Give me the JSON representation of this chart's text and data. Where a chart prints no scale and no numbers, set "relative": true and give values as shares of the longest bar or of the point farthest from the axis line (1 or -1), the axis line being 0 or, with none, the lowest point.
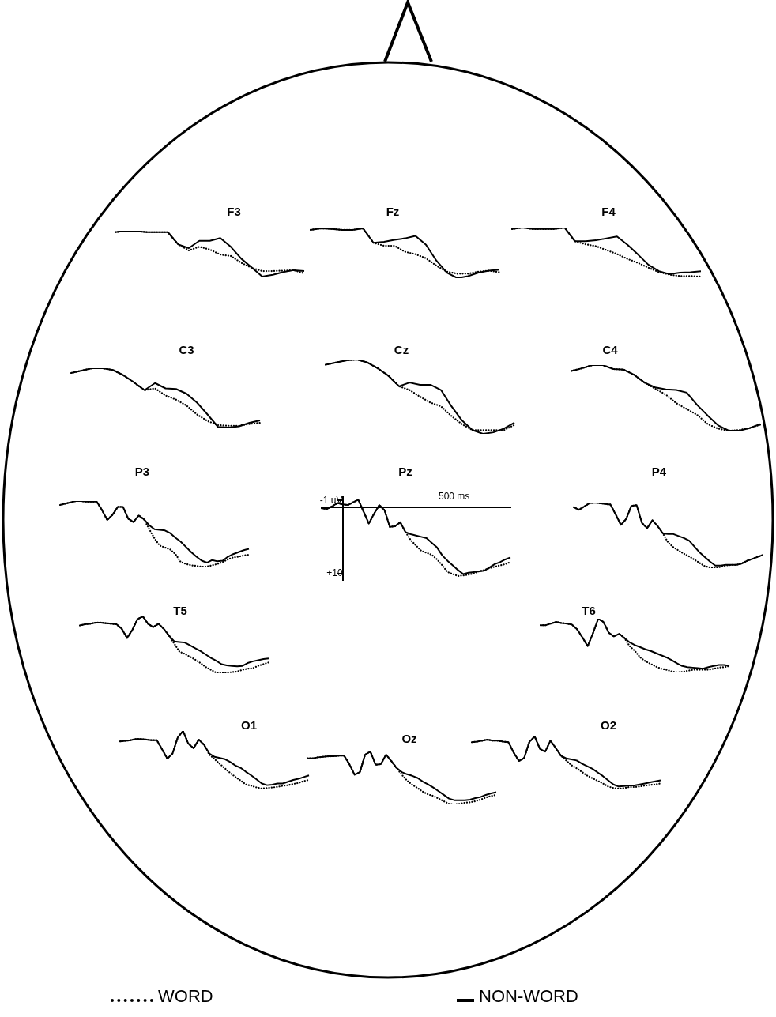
{
  "chart_data": [
    {
      "type": "line",
      "title": "F3",
      "relative": true,
      "legend": "bottom",
      "categories": [
        null,
        null,
        null,
        null,
        null,
        null,
        null,
        null,
        null,
        null,
        null,
        null,
        null,
        null,
        null,
        null,
        null,
        null,
        null
      ],
      "series": [
        {
          "name": "WORD",
          "color": "#000000",
          "line_style": "dotted",
          "values": [
            0.97,
            1,
            0.99,
            0.97,
            0.97,
            0.97,
            0.7,
            0.57,
            0.65,
            0.59,
            0.48,
            0.45,
            0.3,
            0.19,
            0.12,
            0.12,
            0.13,
            0.14,
            0.07
          ]
        },
        {
          "name": "NON-WORD",
          "color": "#000000",
          "line_style": "solid",
          "values": [
            0.97,
            1,
            0.99,
            0.97,
            0.97,
            0.97,
            0.7,
            0.62,
            0.78,
            0.78,
            0.84,
            0.65,
            0.39,
            0.2,
            0,
            0.04,
            0.1,
            0.14,
            0.12
          ]
        }
      ]
    },
    {
      "type": "line",
      "title": "Fz",
      "relative": true,
      "categories": [
        null,
        null,
        null,
        null,
        null,
        null,
        null,
        null,
        null,
        null,
        null,
        null,
        null,
        null,
        null,
        null,
        null,
        null,
        null
      ],
      "series": [
        {
          "color": "#000000",
          "line_style": "dotted",
          "values": [
            0.97,
            1,
            0.99,
            0.97,
            0.97,
            1,
            0.71,
            0.65,
            0.65,
            0.53,
            0.48,
            0.4,
            0.25,
            0.13,
            0.09,
            0.09,
            0.13,
            0.15,
            0.12
          ]
        },
        {
          "color": "#000000",
          "line_style": "solid",
          "values": [
            0.97,
            1,
            0.99,
            0.97,
            0.97,
            1,
            0.71,
            0.73,
            0.77,
            0.8,
            0.85,
            0.67,
            0.35,
            0.11,
            0,
            0.04,
            0.11,
            0.15,
            0.17
          ]
        }
      ]
    },
    {
      "type": "line",
      "title": "F4",
      "relative": true,
      "categories": [
        null,
        null,
        null,
        null,
        null,
        null,
        null,
        null,
        null,
        null,
        null,
        null,
        null,
        null,
        null,
        null,
        null,
        null,
        null
      ],
      "series": [
        {
          "color": "#000000",
          "line_style": "dotted",
          "values": [
            0.97,
            1,
            0.97,
            0.97,
            0.97,
            1,
            0.72,
            0.66,
            0.62,
            0.54,
            0.46,
            0.36,
            0.28,
            0.18,
            0.09,
            0.04,
            0.01,
            0.01,
            0
          ]
        },
        {
          "color": "#000000",
          "line_style": "solid",
          "values": [
            0.97,
            1,
            0.97,
            0.97,
            0.97,
            1,
            0.72,
            0.72,
            0.74,
            0.78,
            0.82,
            0.65,
            0.45,
            0.24,
            0.11,
            0.05,
            0.08,
            0.09,
            0.11
          ]
        }
      ]
    },
    {
      "type": "line",
      "title": "C3",
      "relative": true,
      "categories": [
        null,
        null,
        null,
        null,
        null,
        null,
        null,
        null,
        null,
        null,
        null,
        null,
        null,
        null,
        null,
        null,
        null,
        null,
        null
      ],
      "series": [
        {
          "color": "#000000",
          "line_style": "dotted",
          "values": [
            0.92,
            0.96,
            1,
            1,
            0.97,
            0.88,
            0.76,
            0.63,
            0.66,
            0.54,
            0.47,
            0.37,
            0.22,
            0.11,
            0.04,
            0.03,
            0.03,
            0.06,
            0.08
          ]
        },
        {
          "color": "#000000",
          "line_style": "solid",
          "values": [
            0.92,
            0.96,
            1,
            1,
            0.97,
            0.88,
            0.76,
            0.63,
            0.75,
            0.66,
            0.65,
            0.57,
            0.42,
            0.22,
            0.01,
            0,
            0.02,
            0.08,
            0.12
          ]
        }
      ]
    },
    {
      "type": "line",
      "title": "Cz",
      "relative": true,
      "categories": [
        null,
        null,
        null,
        null,
        null,
        null,
        null,
        null,
        null,
        null,
        null,
        null,
        null,
        null,
        null,
        null,
        null,
        null,
        null
      ],
      "series": [
        {
          "color": "#000000",
          "line_style": "dotted",
          "values": [
            0.93,
            0.96,
            0.99,
            1,
            0.96,
            0.88,
            0.78,
            0.64,
            0.59,
            0.5,
            0.42,
            0.37,
            0.24,
            0.13,
            0.05,
            0.05,
            0.05,
            0.05,
            0.12
          ]
        },
        {
          "color": "#000000",
          "line_style": "solid",
          "values": [
            0.93,
            0.96,
            0.99,
            1,
            0.96,
            0.88,
            0.78,
            0.64,
            0.69,
            0.66,
            0.66,
            0.59,
            0.37,
            0.18,
            0.05,
            0,
            0.02,
            0.07,
            0.15
          ]
        }
      ]
    },
    {
      "type": "line",
      "title": "C4",
      "relative": true,
      "categories": [
        null,
        null,
        null,
        null,
        null,
        null,
        null,
        null,
        null,
        null,
        null,
        null,
        null,
        null,
        null,
        null,
        null,
        null,
        null
      ],
      "series": [
        {
          "color": "#000000",
          "line_style": "dotted",
          "values": [
            0.91,
            0.95,
            1,
            1,
            0.94,
            0.93,
            0.85,
            0.73,
            0.64,
            0.55,
            0.42,
            0.33,
            0.24,
            0.1,
            0.03,
            0,
            0.01,
            0.04,
            0.09
          ]
        },
        {
          "color": "#000000",
          "line_style": "solid",
          "values": [
            0.91,
            0.95,
            1,
            1,
            0.94,
            0.93,
            0.85,
            0.73,
            0.66,
            0.63,
            0.62,
            0.58,
            0.39,
            0.23,
            0.08,
            0,
            0,
            0.04,
            0.1
          ]
        }
      ]
    },
    {
      "type": "line",
      "title": "P3",
      "relative": true,
      "categories": [
        null,
        null,
        null,
        null,
        null,
        null,
        null,
        null,
        null,
        null,
        null,
        null,
        null,
        null,
        null,
        null,
        null,
        null,
        null,
        null,
        null,
        null,
        null,
        null,
        null,
        null,
        null,
        null,
        null,
        null,
        null,
        null,
        null,
        null,
        null,
        null,
        null
      ],
      "series": [
        {
          "color": "#000000",
          "line_style": "dotted",
          "values": [
            0.94,
            0.96,
            0.98,
            1,
            1,
            0.99,
            0.99,
            0.99,
            0.86,
            0.71,
            0.79,
            0.91,
            0.91,
            0.73,
            0.68,
            0.78,
            0.72,
            0.57,
            0.43,
            0.32,
            0.29,
            0.26,
            0.19,
            0.07,
            0.04,
            0.02,
            0.01,
            0,
            0,
            0.02,
            0.04,
            0.07,
            0.11,
            0.14,
            0.15,
            0.17,
            0.18
          ]
        },
        {
          "color": "#000000",
          "line_style": "solid",
          "values": [
            0.94,
            0.96,
            0.98,
            1,
            1,
            0.99,
            0.99,
            0.99,
            0.86,
            0.71,
            0.79,
            0.91,
            0.91,
            0.73,
            0.68,
            0.78,
            0.72,
            0.63,
            0.57,
            0.56,
            0.55,
            0.51,
            0.44,
            0.38,
            0.3,
            0.22,
            0.15,
            0.09,
            0.06,
            0.1,
            0.08,
            0.09,
            0.15,
            0.19,
            0.22,
            0.25,
            0.27
          ]
        }
      ]
    },
    {
      "type": "line",
      "title": "Pz",
      "ylim": [
        11,
        -1.5
      ],
      "yticks": [
        {
          "value": -1,
          "label": "-1 uV"
        },
        {
          "value": 0,
          "label": null
        },
        {
          "value": 10,
          "label": "+10"
        }
      ],
      "annotations": [
        "500 ms"
      ],
      "categories": [
        null,
        null,
        null,
        null,
        null,
        null,
        null,
        null,
        null,
        null,
        null,
        null,
        null,
        null,
        null,
        null,
        null,
        null,
        null,
        null,
        null,
        null,
        null,
        null,
        null,
        null,
        null,
        null,
        null,
        null,
        null,
        null,
        null,
        null,
        null,
        null,
        null
      ],
      "series": [
        {
          "color": "#000000",
          "line_style": "dotted",
          "values": [
            0.2,
            0.3,
            -0.1,
            -0.6,
            -0.4,
            -0.3,
            -0.7,
            -1.1,
            0.7,
            2.5,
            1.0,
            -0.3,
            0.5,
            3.0,
            2.9,
            2.3,
            3.8,
            5.0,
            5.8,
            6.6,
            6.9,
            7.2,
            7.9,
            8.8,
            9.8,
            10.1,
            10.4,
            10.3,
            10.2,
            10.0,
            9.7,
            9.5,
            9.2,
            9.0,
            8.8,
            8.6,
            8.3
          ]
        },
        {
          "color": "#000000",
          "line_style": "solid",
          "values": [
            0.2,
            0.3,
            -0.1,
            -0.6,
            -0.4,
            -0.3,
            -0.7,
            -1.1,
            0.7,
            2.5,
            1.0,
            -0.3,
            0.5,
            3.0,
            2.9,
            2.3,
            3.8,
            4.1,
            4.3,
            4.5,
            4.7,
            5.4,
            6.1,
            7.3,
            8.1,
            8.8,
            9.5,
            10.1,
            9.9,
            9.8,
            9.7,
            9.6,
            9.1,
            8.6,
            8.3,
            7.9,
            7.6
          ]
        }
      ]
    },
    {
      "type": "line",
      "title": "P4",
      "relative": true,
      "categories": [
        null,
        null,
        null,
        null,
        null,
        null,
        null,
        null,
        null,
        null,
        null,
        null,
        null,
        null,
        null,
        null,
        null,
        null,
        null,
        null,
        null,
        null,
        null,
        null,
        null,
        null,
        null,
        null,
        null,
        null,
        null,
        null,
        null,
        null,
        null,
        null,
        null
      ],
      "series": [
        {
          "color": "#000000",
          "line_style": "dotted",
          "values": [
            0.93,
            0.89,
            0.94,
            0.99,
            1,
            0.99,
            0.98,
            0.97,
            0.82,
            0.66,
            0.75,
            0.95,
            0.96,
            0.69,
            0.61,
            0.73,
            0.64,
            0.53,
            0.39,
            0.32,
            0.27,
            0.22,
            0.18,
            0.13,
            0.08,
            0.03,
            0.01,
            0,
            0.02,
            0.04,
            0.05,
            0.05,
            0.07,
            0.11,
            0.14,
            0.17,
            0.2
          ]
        },
        {
          "color": "#000000",
          "line_style": "solid",
          "values": [
            0.93,
            0.89,
            0.94,
            0.99,
            1,
            0.99,
            0.98,
            0.97,
            0.82,
            0.66,
            0.75,
            0.95,
            0.96,
            0.69,
            0.61,
            0.73,
            0.64,
            0.53,
            0.52,
            0.52,
            0.49,
            0.46,
            0.42,
            0.33,
            0.24,
            0.17,
            0.1,
            0.04,
            0.04,
            0.05,
            0.05,
            0.05,
            0.07,
            0.11,
            0.14,
            0.17,
            0.2
          ]
        }
      ]
    },
    {
      "type": "line",
      "title": "T5",
      "relative": true,
      "categories": [
        null,
        null,
        null,
        null,
        null,
        null,
        null,
        null,
        null,
        null,
        null,
        null,
        null,
        null,
        null,
        null,
        null,
        null,
        null,
        null,
        null,
        null,
        null,
        null,
        null,
        null,
        null,
        null,
        null,
        null,
        null,
        null,
        null,
        null,
        null,
        null,
        null
      ],
      "series": [
        {
          "color": "#000000",
          "line_style": "dotted",
          "values": [
            0.84,
            0.86,
            0.87,
            0.89,
            0.89,
            0.88,
            0.87,
            0.86,
            0.78,
            0.62,
            0.76,
            0.95,
            1,
            0.87,
            0.81,
            0.87,
            0.78,
            0.66,
            0.52,
            0.38,
            0.34,
            0.29,
            0.24,
            0.18,
            0.11,
            0.06,
            0.01,
            0,
            0.01,
            0.02,
            0.03,
            0.06,
            0.08,
            0.09,
            0.13,
            0.16,
            0.19
          ]
        },
        {
          "color": "#000000",
          "line_style": "solid",
          "values": [
            0.84,
            0.86,
            0.87,
            0.89,
            0.89,
            0.88,
            0.87,
            0.86,
            0.78,
            0.62,
            0.76,
            0.95,
            1,
            0.87,
            0.81,
            0.87,
            0.78,
            0.66,
            0.56,
            0.55,
            0.54,
            0.49,
            0.44,
            0.39,
            0.33,
            0.27,
            0.22,
            0.16,
            0.14,
            0.13,
            0.12,
            0.13,
            0.18,
            0.21,
            0.23,
            0.25,
            0.26
          ]
        }
      ]
    },
    {
      "type": "line",
      "title": "T6",
      "relative": true,
      "categories": [
        null,
        null,
        null,
        null,
        null,
        null,
        null,
        null,
        null,
        null,
        null,
        null,
        null,
        null,
        null,
        null,
        null,
        null,
        null,
        null,
        null,
        null,
        null,
        null,
        null,
        null,
        null,
        null,
        null,
        null,
        null,
        null,
        null,
        null,
        null,
        null,
        null
      ],
      "series": [
        {
          "color": "#000000",
          "line_style": "dotted",
          "values": [
            0.88,
            0.88,
            0.91,
            0.94,
            0.92,
            0.91,
            0.89,
            0.8,
            0.65,
            0.49,
            0.73,
            1,
            0.94,
            0.74,
            0.67,
            0.72,
            0.64,
            0.49,
            0.4,
            0.28,
            0.21,
            0.16,
            0.11,
            0.07,
            0.05,
            0.02,
            0,
            0.01,
            0.03,
            0.05,
            0.05,
            0.05,
            0.05,
            0.07,
            0.09,
            0.1,
            0.12
          ]
        },
        {
          "color": "#000000",
          "line_style": "solid",
          "values": [
            0.88,
            0.88,
            0.91,
            0.94,
            0.92,
            0.91,
            0.89,
            0.8,
            0.65,
            0.49,
            0.73,
            1,
            0.94,
            0.74,
            0.67,
            0.72,
            0.64,
            0.56,
            0.51,
            0.47,
            0.43,
            0.4,
            0.36,
            0.32,
            0.28,
            0.23,
            0.17,
            0.12,
            0.1,
            0.09,
            0.08,
            0.07,
            0.1,
            0.12,
            0.14,
            0.14,
            0.12
          ]
        }
      ]
    },
    {
      "type": "line",
      "title": "O1",
      "relative": true,
      "categories": [
        null,
        null,
        null,
        null,
        null,
        null,
        null,
        null,
        null,
        null,
        null,
        null,
        null,
        null,
        null,
        null,
        null,
        null,
        null,
        null,
        null,
        null,
        null,
        null,
        null,
        null,
        null,
        null,
        null,
        null,
        null,
        null,
        null,
        null,
        null,
        null,
        null
      ],
      "series": [
        {
          "color": "#000000",
          "line_style": "dotted",
          "values": [
            0.82,
            0.83,
            0.84,
            0.86,
            0.86,
            0.85,
            0.84,
            0.84,
            0.68,
            0.52,
            0.61,
            0.89,
            1,
            0.78,
            0.7,
            0.85,
            0.76,
            0.59,
            0.51,
            0.43,
            0.35,
            0.27,
            0.2,
            0.14,
            0.07,
            0.05,
            0.02,
            0,
            0.01,
            0.02,
            0.03,
            0.05,
            0.06,
            0.08,
            0.1,
            0.13,
            0.15
          ]
        },
        {
          "color": "#000000",
          "line_style": "solid",
          "values": [
            0.82,
            0.83,
            0.84,
            0.86,
            0.86,
            0.85,
            0.84,
            0.84,
            0.68,
            0.52,
            0.61,
            0.89,
            1,
            0.78,
            0.7,
            0.85,
            0.76,
            0.61,
            0.55,
            0.53,
            0.51,
            0.46,
            0.4,
            0.36,
            0.29,
            0.23,
            0.16,
            0.09,
            0.06,
            0.07,
            0.09,
            0.09,
            0.12,
            0.15,
            0.17,
            0.2,
            0.23
          ]
        }
      ]
    },
    {
      "type": "line",
      "title": "Oz",
      "relative": true,
      "categories": [
        null,
        null,
        null,
        null,
        null,
        null,
        null,
        null,
        null,
        null,
        null,
        null,
        null,
        null,
        null,
        null,
        null,
        null,
        null,
        null,
        null,
        null,
        null,
        null,
        null,
        null,
        null,
        null,
        null,
        null,
        null,
        null,
        null,
        null,
        null,
        null,
        null
      ],
      "series": [
        {
          "color": "#000000",
          "line_style": "dotted",
          "values": [
            0.87,
            0.87,
            0.89,
            0.9,
            0.91,
            0.91,
            0.92,
            0.92,
            0.76,
            0.56,
            0.61,
            0.94,
            1,
            0.75,
            0.76,
            0.94,
            0.82,
            0.69,
            0.56,
            0.45,
            0.37,
            0.31,
            0.24,
            0.19,
            0.16,
            0.11,
            0.06,
            0.01,
            0,
            0.01,
            0.03,
            0.04,
            0.06,
            0.09,
            0.13,
            0.16,
            0.18
          ]
        },
        {
          "color": "#000000",
          "line_style": "solid",
          "values": [
            0.87,
            0.87,
            0.89,
            0.9,
            0.91,
            0.91,
            0.92,
            0.92,
            0.76,
            0.56,
            0.61,
            0.94,
            1,
            0.75,
            0.76,
            0.94,
            0.82,
            0.69,
            0.61,
            0.57,
            0.54,
            0.5,
            0.43,
            0.38,
            0.32,
            0.25,
            0.18,
            0.11,
            0.08,
            0.08,
            0.08,
            0.09,
            0.12,
            0.14,
            0.18,
            0.21,
            0.23
          ]
        }
      ]
    },
    {
      "type": "line",
      "title": "O2",
      "relative": true,
      "categories": [
        null,
        null,
        null,
        null,
        null,
        null,
        null,
        null,
        null,
        null,
        null,
        null,
        null,
        null,
        null,
        null,
        null,
        null,
        null,
        null,
        null,
        null,
        null,
        null,
        null,
        null,
        null,
        null,
        null,
        null,
        null,
        null,
        null,
        null,
        null,
        null,
        null
      ],
      "series": [
        {
          "color": "#000000",
          "line_style": "dotted",
          "values": [
            0.89,
            0.9,
            0.92,
            0.94,
            0.92,
            0.92,
            0.9,
            0.89,
            0.69,
            0.53,
            0.59,
            0.9,
            1,
            0.76,
            0.71,
            0.92,
            0.78,
            0.63,
            0.54,
            0.45,
            0.39,
            0.32,
            0.25,
            0.2,
            0.15,
            0.1,
            0.04,
            0.01,
            0,
            0.01,
            0.03,
            0.03,
            0.04,
            0.06,
            0.07,
            0.08,
            0.1
          ]
        },
        {
          "color": "#000000",
          "line_style": "solid",
          "values": [
            0.89,
            0.9,
            0.92,
            0.94,
            0.92,
            0.92,
            0.9,
            0.89,
            0.69,
            0.53,
            0.59,
            0.9,
            1,
            0.76,
            0.71,
            0.92,
            0.78,
            0.63,
            0.58,
            0.56,
            0.54,
            0.48,
            0.43,
            0.38,
            0.31,
            0.24,
            0.16,
            0.08,
            0.04,
            0.05,
            0.06,
            0.06,
            0.08,
            0.1,
            0.12,
            0.14,
            0.16
          ]
        }
      ]
    }
  ]
}
